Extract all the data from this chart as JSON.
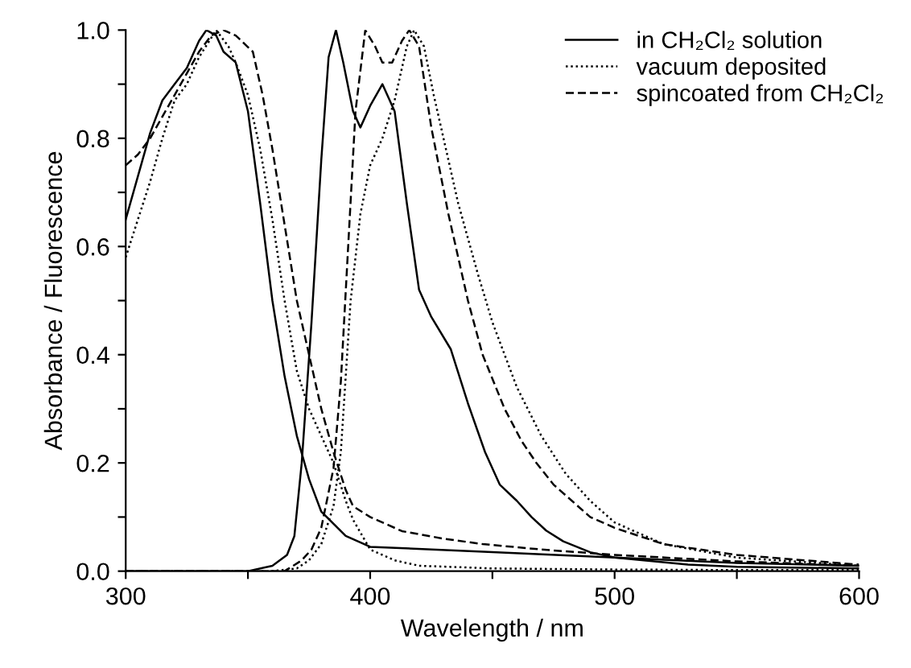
{
  "chart_data": {
    "type": "line",
    "xlabel": "Wavelength / nm",
    "ylabel": "Absorbance / Fluorescence",
    "xlim": [
      300,
      600
    ],
    "ylim": [
      0,
      1.0
    ],
    "xticks": [
      300,
      {
        "value": 350,
        "label": null
      },
      400,
      {
        "value": 450,
        "label": null
      },
      500,
      {
        "value": 550,
        "label": null
      },
      600
    ],
    "yticks": [
      {
        "value": 0,
        "label": "0.0"
      },
      {
        "value": 0.1,
        "label": null
      },
      0.2,
      {
        "value": 0.3,
        "label": null
      },
      0.4,
      {
        "value": 0.5,
        "label": null
      },
      0.6,
      {
        "value": 0.7,
        "label": null
      },
      0.8,
      {
        "value": 0.9,
        "label": null
      },
      {
        "value": 1,
        "label": "1.0"
      }
    ],
    "grid": false,
    "legend": "top right",
    "marker": "none",
    "series": [
      {
        "name": "in CH₂Cl₂ solution",
        "color": "#000000",
        "line_style": "solid",
        "x": [
          300,
          305,
          310,
          315,
          320,
          325,
          330,
          333,
          337,
          340,
          345,
          350,
          355,
          360,
          365,
          370,
          375,
          380,
          390,
          400,
          450,
          500,
          550,
          600
        ],
        "values": [
          0.65,
          0.73,
          0.81,
          0.87,
          0.9,
          0.93,
          0.98,
          1.0,
          0.99,
          0.96,
          0.94,
          0.85,
          0.68,
          0.5,
          0.36,
          0.25,
          0.17,
          0.11,
          0.065,
          0.045,
          0.035,
          0.025,
          0.015,
          0.01
        ]
      },
      {
        "color": "#000000",
        "line_style": "solid",
        "x": [
          300,
          340,
          350,
          360,
          366,
          369,
          372,
          376,
          380,
          383,
          386,
          389,
          393,
          396,
          400,
          405,
          410,
          415,
          420,
          425,
          433,
          440,
          447,
          453,
          460,
          466,
          472,
          479,
          490,
          500,
          512,
          530,
          550,
          600
        ],
        "values": [
          0,
          0,
          0,
          0.01,
          0.03,
          0.065,
          0.2,
          0.46,
          0.76,
          0.95,
          1.0,
          0.94,
          0.85,
          0.82,
          0.86,
          0.9,
          0.85,
          0.68,
          0.52,
          0.47,
          0.41,
          0.31,
          0.22,
          0.16,
          0.13,
          0.1,
          0.075,
          0.055,
          0.035,
          0.025,
          0.02,
          0.012,
          0.008,
          0.005
        ]
      },
      {
        "name": "vacuum deposited",
        "color": "#000000",
        "line_style": "dotted",
        "x": [
          300,
          305,
          310,
          315,
          320,
          325,
          330,
          337,
          342,
          345,
          350,
          355,
          360,
          365,
          370,
          375,
          380,
          385,
          390,
          393,
          400,
          410,
          420,
          450,
          500,
          550,
          600
        ],
        "values": [
          0.58,
          0.65,
          0.72,
          0.8,
          0.87,
          0.9,
          0.95,
          1.0,
          0.97,
          0.94,
          0.88,
          0.78,
          0.65,
          0.5,
          0.37,
          0.3,
          0.25,
          0.2,
          0.13,
          0.095,
          0.04,
          0.02,
          0.01,
          0.005,
          0.003,
          0.002,
          0.002
        ]
      },
      {
        "color": "#000000",
        "line_style": "dotted",
        "x": [
          300,
          360,
          370,
          375,
          380,
          385,
          388,
          392,
          396,
          400,
          405,
          410,
          415,
          418,
          422,
          426,
          430,
          436,
          444,
          450,
          460,
          470,
          480,
          490,
          500,
          520,
          550,
          600
        ],
        "values": [
          0,
          0,
          0.005,
          0.02,
          0.05,
          0.12,
          0.22,
          0.5,
          0.66,
          0.75,
          0.8,
          0.87,
          0.97,
          1.0,
          0.97,
          0.88,
          0.8,
          0.68,
          0.55,
          0.46,
          0.34,
          0.25,
          0.18,
          0.13,
          0.09,
          0.05,
          0.025,
          0.01
        ]
      },
      {
        "name": "spincoated from CH₂Cl₂",
        "color": "#000000",
        "line_style": "dashed",
        "x": [
          300,
          305,
          310,
          315,
          320,
          325,
          330,
          335,
          340,
          345,
          352,
          356,
          360,
          365,
          370,
          375,
          380,
          385,
          390,
          393,
          400,
          413,
          430,
          446,
          470,
          500,
          550,
          600
        ],
        "values": [
          0.75,
          0.77,
          0.8,
          0.84,
          0.88,
          0.92,
          0.96,
          0.99,
          1.0,
          0.99,
          0.96,
          0.88,
          0.78,
          0.64,
          0.5,
          0.4,
          0.3,
          0.22,
          0.15,
          0.12,
          0.1,
          0.074,
          0.06,
          0.05,
          0.04,
          0.03,
          0.018,
          0.01
        ]
      },
      {
        "color": "#000000",
        "line_style": "dashed",
        "x": [
          300,
          365,
          372,
          376,
          380,
          385,
          388,
          391,
          394,
          398,
          402,
          405,
          409,
          413,
          416,
          420,
          425,
          432,
          440,
          446,
          455,
          462,
          468,
          475,
          480,
          490,
          500,
          520,
          550,
          600
        ],
        "values": [
          0,
          0,
          0.02,
          0.04,
          0.08,
          0.19,
          0.35,
          0.6,
          0.85,
          1.0,
          0.97,
          0.94,
          0.94,
          0.98,
          1.0,
          0.97,
          0.82,
          0.66,
          0.5,
          0.4,
          0.3,
          0.24,
          0.2,
          0.16,
          0.14,
          0.1,
          0.08,
          0.05,
          0.03,
          0.012
        ]
      }
    ]
  }
}
